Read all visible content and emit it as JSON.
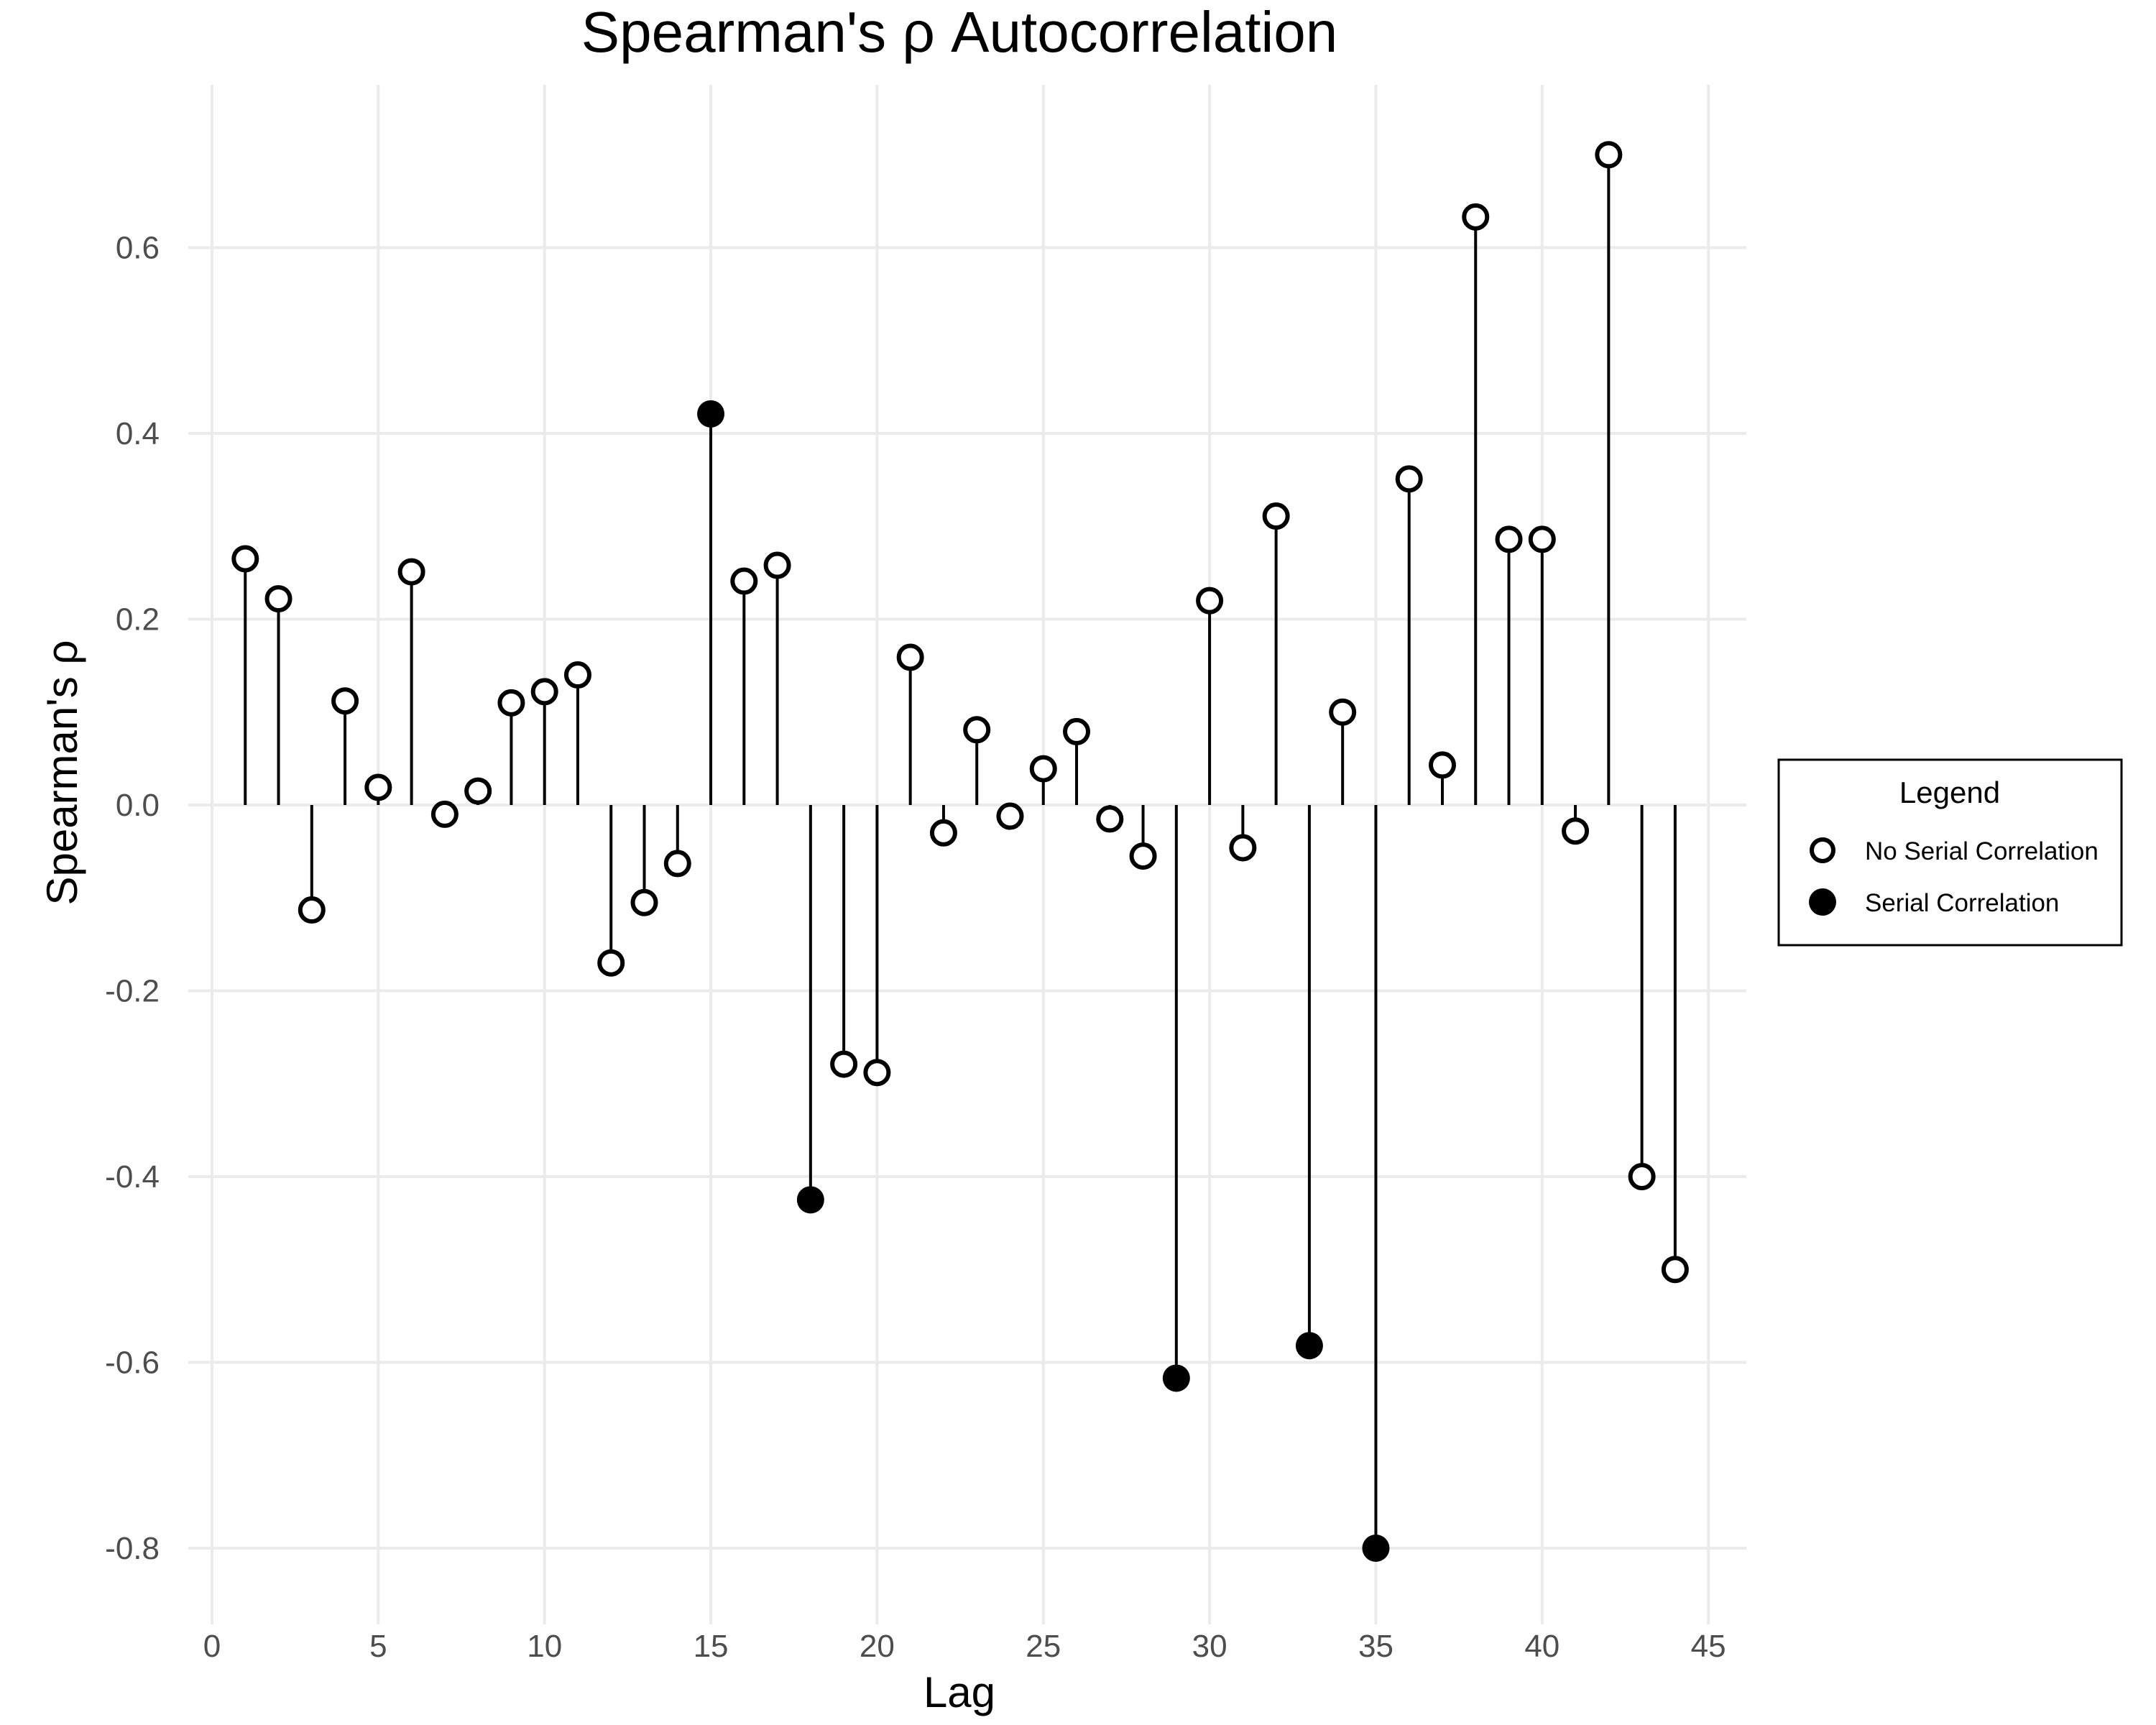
{
  "chart_data": {
    "type": "scatter",
    "subtype": "lollipop",
    "title": "Spearman's ρ Autocorrelation",
    "xlabel": "Lag",
    "ylabel": "Spearman's ρ",
    "xlim": [
      0,
      45
    ],
    "ylim": [
      -0.8,
      0.7
    ],
    "x_ticks": [
      "0",
      "5",
      "10",
      "15",
      "20",
      "25",
      "30",
      "35",
      "40",
      "45"
    ],
    "y_ticks": [
      "-0.8",
      "-0.6",
      "-0.4",
      "-0.2",
      "0.0",
      "0.2",
      "0.4",
      "0.6"
    ],
    "grid": true,
    "legend": {
      "title": "Legend",
      "position": "right",
      "entries": [
        "No Serial Correlation",
        "Serial Correlation"
      ]
    },
    "colors": {
      "marker": "#000000",
      "open_fill": "#ffffff",
      "grid": "#ebebeb"
    },
    "lags": [
      1,
      2,
      3,
      4,
      5,
      6,
      7,
      8,
      9,
      10,
      11,
      12,
      13,
      14,
      15,
      16,
      17,
      18,
      19,
      20,
      21,
      22,
      23,
      24,
      25,
      26,
      27,
      28,
      29,
      30,
      31,
      32,
      33,
      34,
      35,
      36,
      37,
      38,
      39,
      40,
      41,
      42,
      43,
      44
    ],
    "values": [
      0.265,
      0.222,
      -0.113,
      0.112,
      0.019,
      0.251,
      -0.01,
      0.015,
      0.11,
      0.122,
      0.14,
      -0.17,
      -0.105,
      -0.063,
      0.421,
      0.241,
      0.258,
      -0.425,
      -0.279,
      -0.288,
      0.159,
      -0.03,
      0.081,
      -0.012,
      0.039,
      0.079,
      -0.015,
      -0.055,
      -0.617,
      0.22,
      -0.046,
      0.311,
      -0.582,
      0.1,
      -0.8,
      0.351,
      0.043,
      0.633,
      0.286,
      0.286,
      -0.028,
      0.7,
      -0.4,
      -0.5
    ],
    "serial_correlation": [
      false,
      false,
      false,
      false,
      false,
      false,
      false,
      false,
      false,
      false,
      false,
      false,
      false,
      false,
      true,
      false,
      false,
      true,
      false,
      false,
      false,
      false,
      false,
      false,
      false,
      false,
      false,
      false,
      true,
      false,
      false,
      false,
      true,
      false,
      true,
      false,
      false,
      false,
      false,
      false,
      false,
      false,
      false,
      false
    ]
  }
}
